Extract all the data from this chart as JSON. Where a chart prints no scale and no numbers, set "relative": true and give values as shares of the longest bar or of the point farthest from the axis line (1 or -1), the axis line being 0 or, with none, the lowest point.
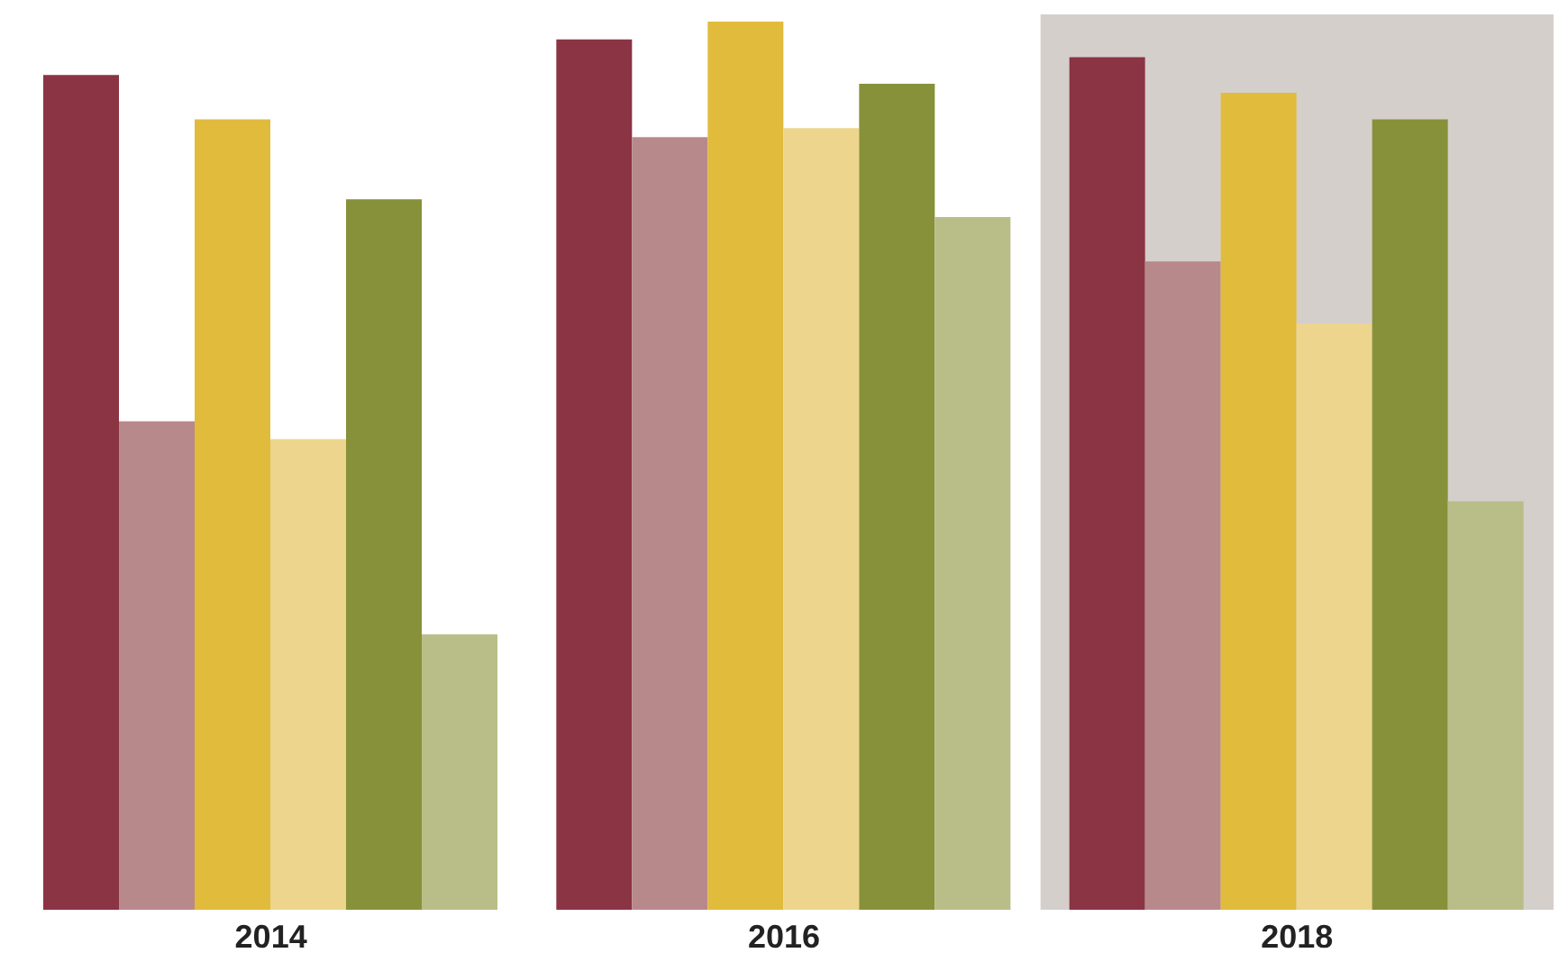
{
  "chart_data": {
    "type": "bar",
    "relative": true,
    "categories": [
      "2014",
      "2016",
      "2018"
    ],
    "series": [
      {
        "color": "#8b3443",
        "values": [
          0.94,
          0.98,
          0.96
        ]
      },
      {
        "color": "#b8898b",
        "values": [
          0.55,
          0.87,
          0.73
        ]
      },
      {
        "color": "#e0bb3c",
        "values": [
          0.89,
          1,
          0.92
        ]
      },
      {
        "color": "#edd58d",
        "values": [
          0.53,
          0.88,
          0.66
        ]
      },
      {
        "color": "#87913a",
        "values": [
          0.8,
          0.93,
          0.89
        ]
      },
      {
        "color": "#b9bd88",
        "values": [
          0.31,
          0.78,
          0.46
        ]
      }
    ],
    "bands": [
      {
        "axis": "x",
        "from": "2018",
        "to": "2018",
        "color": "#d5cfcb"
      }
    ]
  }
}
